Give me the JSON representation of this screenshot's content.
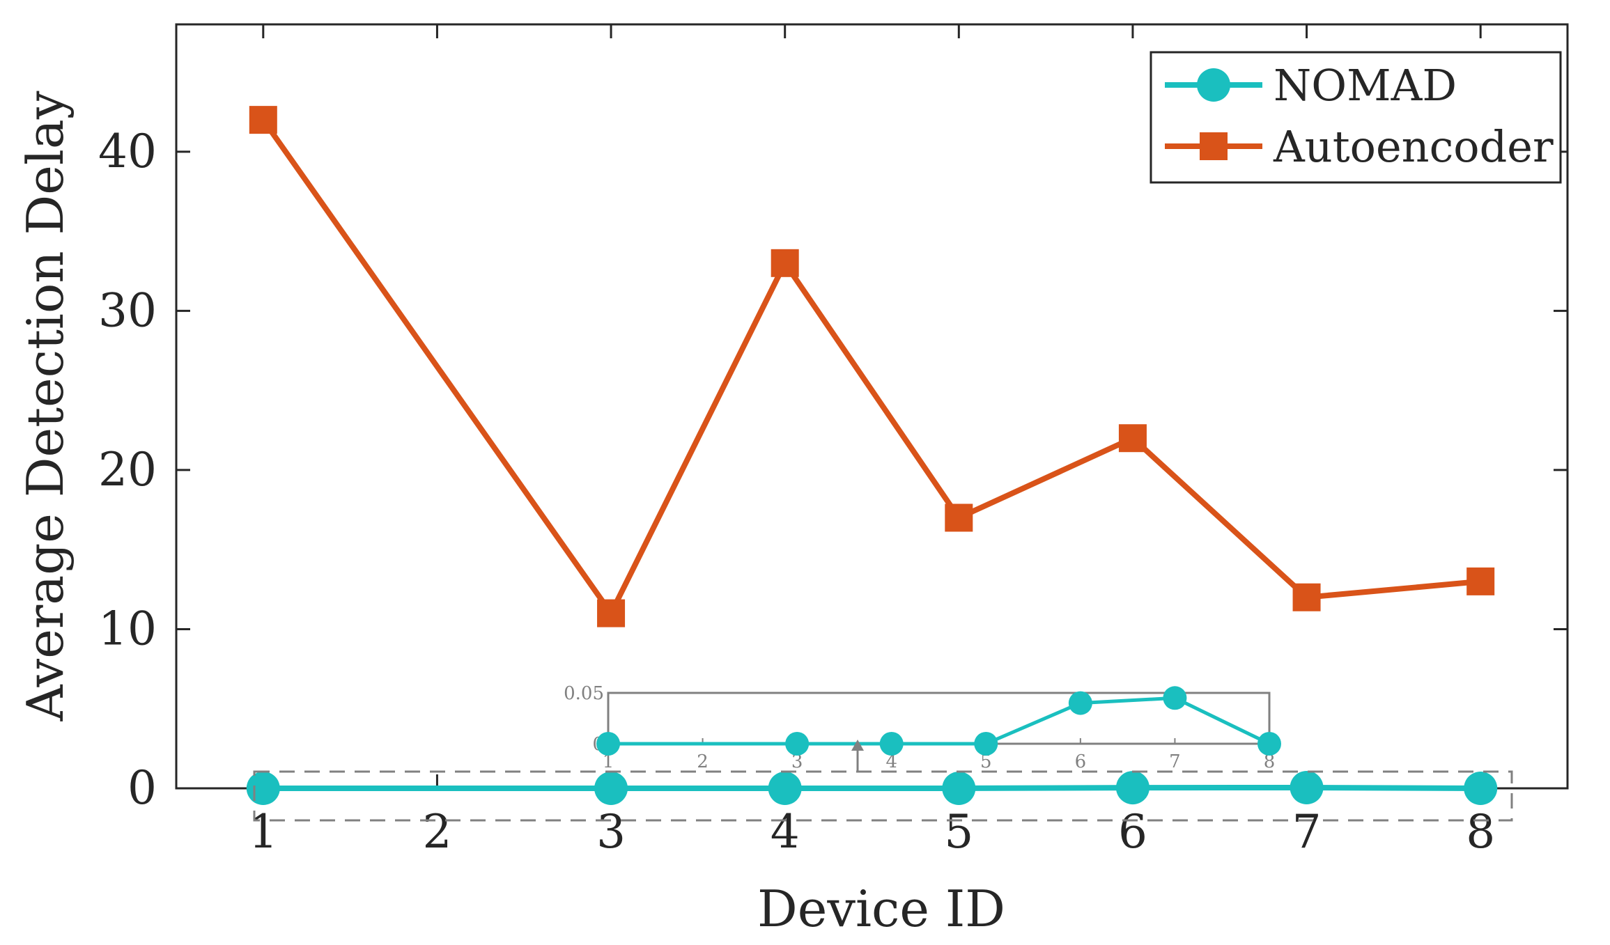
{
  "chart_data": {
    "type": "line",
    "xlabel": "Device ID",
    "ylabel": "Average Detection Delay",
    "x": [
      1,
      3,
      4,
      5,
      6,
      7,
      8
    ],
    "x_ticks": [
      1,
      2,
      3,
      4,
      5,
      6,
      7,
      8
    ],
    "y_ticks": [
      0,
      10,
      20,
      30,
      40
    ],
    "xlim": [
      0.5,
      8.5
    ],
    "ylim": [
      0,
      48
    ],
    "grid": false,
    "legend_position": "top-right",
    "series": [
      {
        "name": "NOMAD",
        "color": "#1ABFBF",
        "marker": "circle",
        "values": [
          0,
          0,
          0,
          0,
          0.04,
          0.045,
          0
        ]
      },
      {
        "name": "Autoencoder",
        "color": "#D95319",
        "marker": "square",
        "values": [
          42,
          11,
          33,
          17,
          22,
          12,
          13
        ]
      }
    ],
    "inset": {
      "series": "NOMAD",
      "x_ticks": [
        1,
        2,
        3,
        4,
        5,
        6,
        7,
        8
      ],
      "y_ticks": [
        0,
        0.05
      ],
      "y_tick_labels": [
        "0",
        "0.05"
      ],
      "xlim": [
        1,
        8
      ],
      "ylim": [
        0,
        0.05
      ],
      "x": [
        1,
        3,
        4,
        5,
        6,
        7,
        8
      ],
      "values": [
        0,
        0,
        0,
        0,
        0.04,
        0.045,
        0
      ]
    }
  }
}
